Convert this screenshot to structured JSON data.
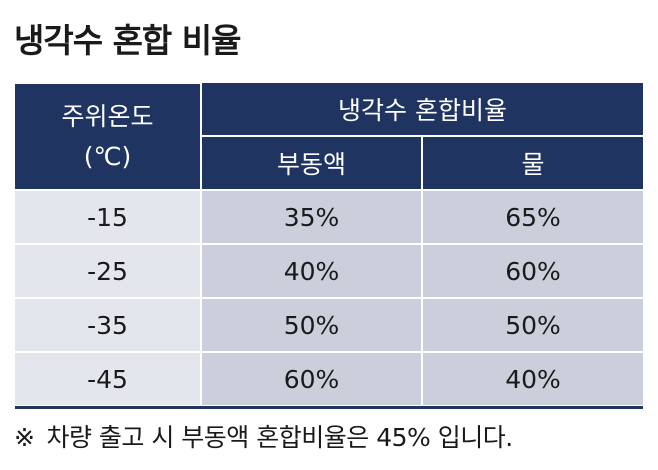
{
  "title": "냉각수 혼합 비율",
  "table": {
    "corner_line1": "주위온도",
    "corner_line2": "(℃)",
    "group_header": "냉각수 혼합비율",
    "col_antifreeze": "부동액",
    "col_water": "물",
    "rows": [
      {
        "temp": "-15",
        "antifreeze": "35%",
        "water": "65%"
      },
      {
        "temp": "-25",
        "antifreeze": "40%",
        "water": "60%"
      },
      {
        "temp": "-35",
        "antifreeze": "50%",
        "water": "50%"
      },
      {
        "temp": "-45",
        "antifreeze": "60%",
        "water": "40%"
      }
    ]
  },
  "note": {
    "mark": "※",
    "text": "차량 출고 시 부동액 혼합비율은 45% 입니다."
  },
  "colors": {
    "header_bg": "#1f3461",
    "temp_cell_bg": "#e4e6ed",
    "value_cell_bg": "#cbcfdc"
  }
}
